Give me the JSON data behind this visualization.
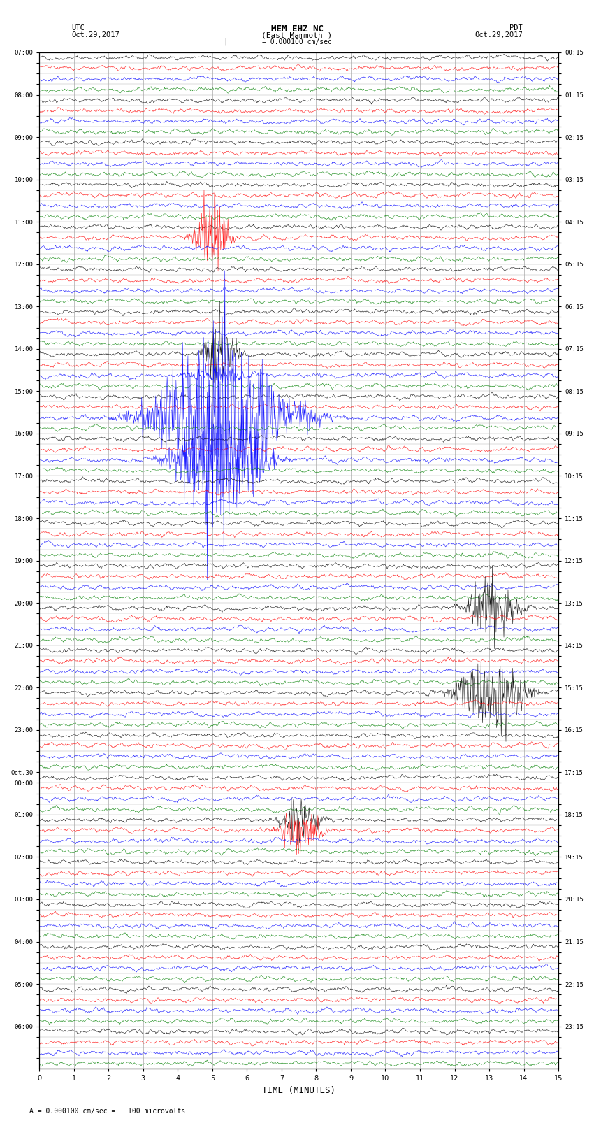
{
  "title_line1": "MEM EHZ NC",
  "title_line2": "(East Mammoth )",
  "scale_label": "= 0.000100 cm/sec",
  "left_label": "UTC",
  "left_date": "Oct.29,2017",
  "right_label": "PDT",
  "right_date": "Oct.29,2017",
  "bottom_label": "TIME (MINUTES)",
  "footer_label": "= 0.000100 cm/sec =   100 microvolts",
  "utc_times": [
    "07:00",
    "",
    "",
    "",
    "08:00",
    "",
    "",
    "",
    "09:00",
    "",
    "",
    "",
    "10:00",
    "",
    "",
    "",
    "11:00",
    "",
    "",
    "",
    "12:00",
    "",
    "",
    "",
    "13:00",
    "",
    "",
    "",
    "14:00",
    "",
    "",
    "",
    "15:00",
    "",
    "",
    "",
    "16:00",
    "",
    "",
    "",
    "17:00",
    "",
    "",
    "",
    "18:00",
    "",
    "",
    "",
    "19:00",
    "",
    "",
    "",
    "20:00",
    "",
    "",
    "",
    "21:00",
    "",
    "",
    "",
    "22:00",
    "",
    "",
    "",
    "23:00",
    "",
    "",
    "",
    "Oct.30",
    "00:00",
    "",
    "",
    "01:00",
    "",
    "",
    "",
    "02:00",
    "",
    "",
    "",
    "03:00",
    "",
    "",
    "",
    "04:00",
    "",
    "",
    "",
    "05:00",
    "",
    "",
    "",
    "06:00",
    "",
    "",
    ""
  ],
  "pdt_times": [
    "00:15",
    "",
    "",
    "",
    "01:15",
    "",
    "",
    "",
    "02:15",
    "",
    "",
    "",
    "03:15",
    "",
    "",
    "",
    "04:15",
    "",
    "",
    "",
    "05:15",
    "",
    "",
    "",
    "06:15",
    "",
    "",
    "",
    "07:15",
    "",
    "",
    "",
    "08:15",
    "",
    "",
    "",
    "09:15",
    "",
    "",
    "",
    "10:15",
    "",
    "",
    "",
    "11:15",
    "",
    "",
    "",
    "12:15",
    "",
    "",
    "",
    "13:15",
    "",
    "",
    "",
    "14:15",
    "",
    "",
    "",
    "15:15",
    "",
    "",
    "",
    "16:15",
    "",
    "",
    "",
    "17:15",
    "",
    "",
    "",
    "18:15",
    "",
    "",
    "",
    "19:15",
    "",
    "",
    "",
    "20:15",
    "",
    "",
    "",
    "21:15",
    "",
    "",
    "",
    "22:15",
    "",
    "",
    "",
    "23:15",
    "",
    "",
    ""
  ],
  "n_rows": 96,
  "n_channels": 4,
  "channel_colors": [
    "#000000",
    "#ff0000",
    "#0000ff",
    "#008000"
  ],
  "xmin": 0,
  "xmax": 15,
  "background_color": "#ffffff",
  "grid_color": "#aaaaaa",
  "noise_amplitude": 0.3,
  "seed": 42
}
